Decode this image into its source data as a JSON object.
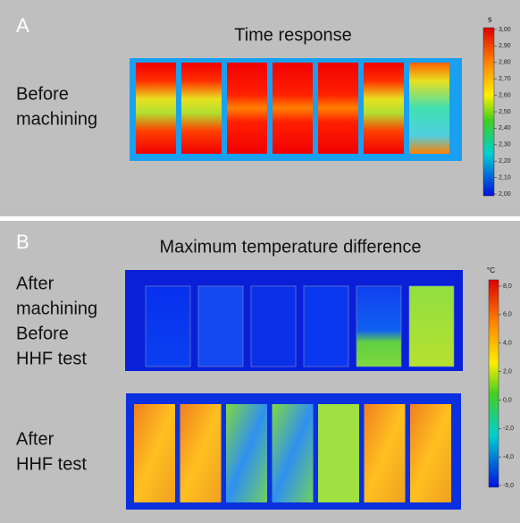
{
  "panel_a": {
    "label": "A",
    "title": "Time response",
    "row_label": [
      "Before",
      "machining"
    ],
    "colorbar": {
      "unit": "s",
      "ticks": [
        "3,00",
        "2,90",
        "2,80",
        "2,70",
        "2,60",
        "2,50",
        "2,40",
        "2,30",
        "2,20",
        "2,10",
        "2,00"
      ]
    }
  },
  "panel_b": {
    "label": "B",
    "title": "Maximum temperature difference",
    "rows": [
      {
        "label": [
          "After",
          "machining",
          "Before",
          "HHF test"
        ]
      },
      {
        "label": [
          "After",
          "HHF test"
        ]
      }
    ],
    "colorbar": {
      "unit": "°C",
      "ticks": [
        "8,0",
        "6,0",
        "4,0",
        "2,0",
        "0,0",
        "-2,0",
        "-4,0",
        "-5,0"
      ]
    }
  }
}
